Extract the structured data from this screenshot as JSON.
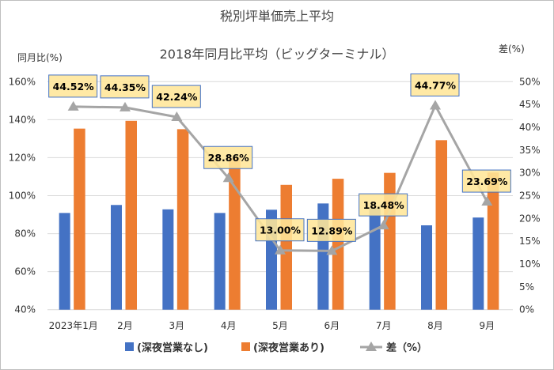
{
  "chart_data": {
    "type": "bar+line",
    "title": "税別坪単価売上平均",
    "subtitle": "2018年同月比平均（ビッグターミナル）",
    "ylabel_left": "同月比(%)",
    "ylabel_right": "差(%)",
    "categories": [
      "2023年1月",
      "2月",
      "3月",
      "4月",
      "5月",
      "6月",
      "7月",
      "8月",
      "9月"
    ],
    "ylim_left": [
      40,
      160
    ],
    "yticks_left": [
      "40%",
      "60%",
      "80%",
      "100%",
      "120%",
      "140%",
      "160%"
    ],
    "ylim_right": [
      0,
      50
    ],
    "yticks_right": [
      "0%",
      "5%",
      "10%",
      "15%",
      "20%",
      "25%",
      "30%",
      "35%",
      "40%",
      "45%",
      "50%"
    ],
    "grid": true,
    "legend_position": "bottom",
    "series": [
      {
        "name": "(深夜営業なし)",
        "type": "bar",
        "axis": "left",
        "color": "#4472C4",
        "values": [
          90.9,
          95.1,
          92.8,
          90.9,
          92.6,
          95.9,
          93.5,
          84.4,
          88.5
        ]
      },
      {
        "name": "(深夜営業あり)",
        "type": "bar",
        "axis": "left",
        "color": "#ED7D31",
        "values": [
          135.3,
          139.4,
          135.0,
          119.8,
          105.7,
          108.9,
          112.0,
          129.2,
          112.2
        ]
      },
      {
        "name": "差（%）",
        "type": "line",
        "axis": "right",
        "color": "#A5A5A5",
        "marker": "triangle",
        "values": [
          44.52,
          44.35,
          42.24,
          28.86,
          13.0,
          12.89,
          18.48,
          44.77,
          23.69
        ],
        "data_labels": [
          "44.52%",
          "44.35%",
          "42.24%",
          "28.86%",
          "13.00%",
          "12.89%",
          "18.48%",
          "44.77%",
          "23.69%"
        ]
      }
    ],
    "data_label_style": {
      "fill": "#FFE699",
      "border": "#4472C4"
    }
  }
}
